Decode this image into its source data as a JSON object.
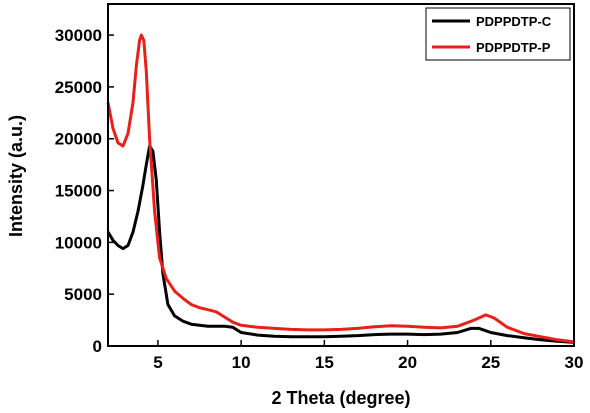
{
  "chart_data": {
    "type": "line",
    "title": "",
    "xlabel": "2 Theta (degree)",
    "ylabel": "Intensity (a.u.)",
    "xlim": [
      2,
      30
    ],
    "ylim": [
      0,
      33000
    ],
    "x_ticks": [
      5,
      10,
      15,
      20,
      25,
      30
    ],
    "y_ticks": [
      0,
      5000,
      10000,
      15000,
      20000,
      25000,
      30000
    ],
    "x_tick_labels": [
      "5",
      "10",
      "15",
      "20",
      "25",
      "30"
    ],
    "y_tick_labels": [
      "0",
      "5000",
      "10000",
      "15000",
      "20000",
      "25000",
      "30000"
    ],
    "grid": false,
    "legend_position": "top-right",
    "series": [
      {
        "name": "PDPPDTP-C",
        "color": "#000000",
        "points": [
          [
            2,
            11000
          ],
          [
            2.3,
            10200
          ],
          [
            2.6,
            9700
          ],
          [
            2.9,
            9400
          ],
          [
            3.2,
            9700
          ],
          [
            3.5,
            11000
          ],
          [
            3.8,
            13000
          ],
          [
            4.1,
            15500
          ],
          [
            4.3,
            17500
          ],
          [
            4.5,
            19300
          ],
          [
            4.7,
            18800
          ],
          [
            4.9,
            16000
          ],
          [
            5.1,
            11000
          ],
          [
            5.3,
            7000
          ],
          [
            5.6,
            4000
          ],
          [
            6.0,
            2900
          ],
          [
            6.5,
            2400
          ],
          [
            7.0,
            2100
          ],
          [
            8.0,
            1900
          ],
          [
            9.0,
            1900
          ],
          [
            9.5,
            1800
          ],
          [
            10.0,
            1300
          ],
          [
            11,
            1050
          ],
          [
            12,
            950
          ],
          [
            13,
            900
          ],
          [
            14,
            900
          ],
          [
            15,
            900
          ],
          [
            16,
            950
          ],
          [
            17,
            1000
          ],
          [
            18,
            1100
          ],
          [
            19,
            1150
          ],
          [
            20,
            1150
          ],
          [
            21,
            1100
          ],
          [
            22,
            1150
          ],
          [
            23,
            1300
          ],
          [
            23.8,
            1700
          ],
          [
            24.3,
            1700
          ],
          [
            25,
            1300
          ],
          [
            26,
            1000
          ],
          [
            27,
            800
          ],
          [
            28,
            600
          ],
          [
            29,
            450
          ],
          [
            30,
            350
          ]
        ]
      },
      {
        "name": "PDPPDTP-P",
        "color": "#e8201a",
        "points": [
          [
            2,
            23500
          ],
          [
            2.3,
            21000
          ],
          [
            2.6,
            19600
          ],
          [
            2.9,
            19300
          ],
          [
            3.2,
            20500
          ],
          [
            3.5,
            23500
          ],
          [
            3.7,
            27000
          ],
          [
            3.9,
            29500
          ],
          [
            4.0,
            30000
          ],
          [
            4.15,
            29500
          ],
          [
            4.3,
            26500
          ],
          [
            4.5,
            20000
          ],
          [
            4.8,
            13000
          ],
          [
            5.1,
            8500
          ],
          [
            5.5,
            6500
          ],
          [
            6.0,
            5300
          ],
          [
            6.5,
            4600
          ],
          [
            7.0,
            4000
          ],
          [
            7.5,
            3700
          ],
          [
            8.0,
            3500
          ],
          [
            8.5,
            3300
          ],
          [
            9.0,
            2800
          ],
          [
            9.5,
            2300
          ],
          [
            10.0,
            2000
          ],
          [
            11,
            1800
          ],
          [
            12,
            1700
          ],
          [
            13,
            1600
          ],
          [
            14,
            1550
          ],
          [
            15,
            1550
          ],
          [
            16,
            1600
          ],
          [
            17,
            1700
          ],
          [
            18,
            1850
          ],
          [
            19,
            1950
          ],
          [
            20,
            1900
          ],
          [
            21,
            1800
          ],
          [
            22,
            1750
          ],
          [
            23,
            1900
          ],
          [
            24,
            2500
          ],
          [
            24.7,
            3000
          ],
          [
            25.2,
            2700
          ],
          [
            26,
            1800
          ],
          [
            27,
            1200
          ],
          [
            28,
            900
          ],
          [
            29,
            600
          ],
          [
            30,
            400
          ]
        ]
      }
    ]
  }
}
